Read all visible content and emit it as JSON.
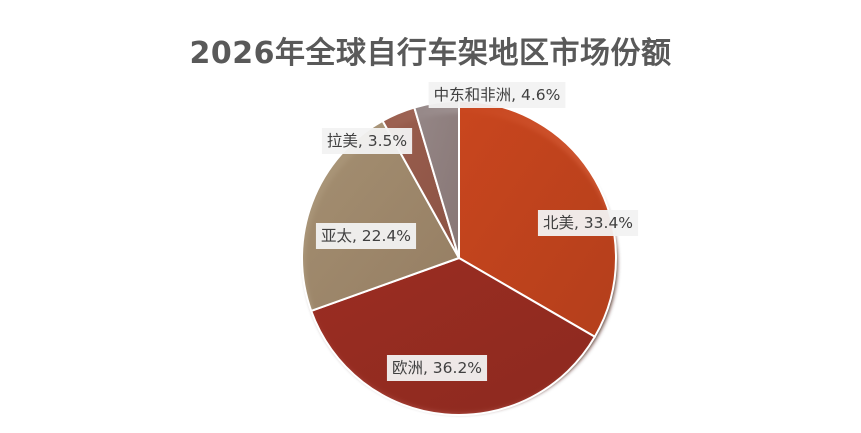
{
  "chart_data": {
    "type": "pie",
    "title": "2026年全球自行车架地区市场份额",
    "slices": [
      {
        "label": "北美",
        "value": 33.4,
        "label_text": "北美, 33.4%",
        "color": "#C9461E"
      },
      {
        "label": "欧洲",
        "value": 36.2,
        "label_text": "欧洲, 36.2%",
        "color": "#9B2D22"
      },
      {
        "label": "亚太",
        "value": 22.4,
        "label_text": "亚太, 22.4%",
        "color": "#A59072"
      },
      {
        "label": "拉美",
        "value": 3.5,
        "label_text": "拉美, 3.5%",
        "color": "#9A5E4E"
      },
      {
        "label": "中东和非洲",
        "value": 4.6,
        "label_text": "中东和非洲, 4.6%",
        "color": "#958787"
      }
    ],
    "legend": "none",
    "data_labels": "category, percent"
  }
}
